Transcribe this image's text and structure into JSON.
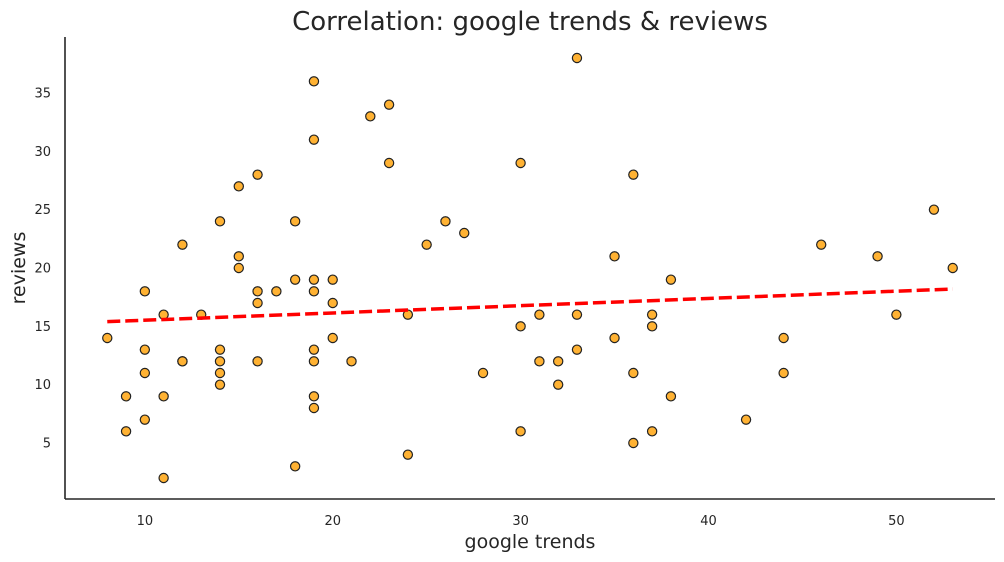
{
  "chart_data": {
    "type": "scatter",
    "title": "Correlation: google trends & reviews",
    "xlabel": "google trends",
    "ylabel": "reviews",
    "xlim": [
      5.75,
      55.25
    ],
    "ylim": [
      0.2,
      39.8
    ],
    "xticks": [
      10,
      20,
      30,
      40,
      50
    ],
    "yticks": [
      5,
      10,
      15,
      20,
      25,
      30,
      35
    ],
    "grid": false,
    "legend": "none",
    "point_color": "#FFB233",
    "point_edge_color": "#222222",
    "trend_color": "#FF0000",
    "trend_style": "dashed",
    "trendline": {
      "x": [
        8,
        53
      ],
      "y": [
        15.4,
        18.2
      ]
    },
    "points": [
      {
        "x": 8,
        "y": 14
      },
      {
        "x": 9,
        "y": 9
      },
      {
        "x": 9,
        "y": 6
      },
      {
        "x": 10,
        "y": 18
      },
      {
        "x": 10,
        "y": 13
      },
      {
        "x": 10,
        "y": 11
      },
      {
        "x": 10,
        "y": 7
      },
      {
        "x": 11,
        "y": 16
      },
      {
        "x": 11,
        "y": 9
      },
      {
        "x": 11,
        "y": 2
      },
      {
        "x": 12,
        "y": 22
      },
      {
        "x": 12,
        "y": 12
      },
      {
        "x": 12,
        "y": 12
      },
      {
        "x": 13,
        "y": 16
      },
      {
        "x": 14,
        "y": 24
      },
      {
        "x": 14,
        "y": 13
      },
      {
        "x": 14,
        "y": 12
      },
      {
        "x": 14,
        "y": 11
      },
      {
        "x": 14,
        "y": 10
      },
      {
        "x": 15,
        "y": 27
      },
      {
        "x": 15,
        "y": 21
      },
      {
        "x": 15,
        "y": 20
      },
      {
        "x": 16,
        "y": 28
      },
      {
        "x": 16,
        "y": 18
      },
      {
        "x": 16,
        "y": 17
      },
      {
        "x": 16,
        "y": 12
      },
      {
        "x": 17,
        "y": 18
      },
      {
        "x": 18,
        "y": 24
      },
      {
        "x": 18,
        "y": 19
      },
      {
        "x": 18,
        "y": 3
      },
      {
        "x": 19,
        "y": 36
      },
      {
        "x": 19,
        "y": 31
      },
      {
        "x": 19,
        "y": 19
      },
      {
        "x": 19,
        "y": 18
      },
      {
        "x": 19,
        "y": 13
      },
      {
        "x": 19,
        "y": 12
      },
      {
        "x": 19,
        "y": 9
      },
      {
        "x": 19,
        "y": 8
      },
      {
        "x": 20,
        "y": 19
      },
      {
        "x": 20,
        "y": 17
      },
      {
        "x": 20,
        "y": 14
      },
      {
        "x": 21,
        "y": 12
      },
      {
        "x": 22,
        "y": 33
      },
      {
        "x": 23,
        "y": 34
      },
      {
        "x": 23,
        "y": 29
      },
      {
        "x": 24,
        "y": 16
      },
      {
        "x": 24,
        "y": 4
      },
      {
        "x": 25,
        "y": 22
      },
      {
        "x": 26,
        "y": 24
      },
      {
        "x": 27,
        "y": 23
      },
      {
        "x": 28,
        "y": 11
      },
      {
        "x": 30,
        "y": 29
      },
      {
        "x": 30,
        "y": 15
      },
      {
        "x": 30,
        "y": 6
      },
      {
        "x": 31,
        "y": 16
      },
      {
        "x": 31,
        "y": 12
      },
      {
        "x": 32,
        "y": 12
      },
      {
        "x": 32,
        "y": 10
      },
      {
        "x": 33,
        "y": 38
      },
      {
        "x": 33,
        "y": 16
      },
      {
        "x": 33,
        "y": 13
      },
      {
        "x": 35,
        "y": 21
      },
      {
        "x": 35,
        "y": 14
      },
      {
        "x": 36,
        "y": 28
      },
      {
        "x": 36,
        "y": 11
      },
      {
        "x": 36,
        "y": 5
      },
      {
        "x": 37,
        "y": 16
      },
      {
        "x": 37,
        "y": 15
      },
      {
        "x": 37,
        "y": 6
      },
      {
        "x": 38,
        "y": 19
      },
      {
        "x": 38,
        "y": 9
      },
      {
        "x": 42,
        "y": 7
      },
      {
        "x": 44,
        "y": 14
      },
      {
        "x": 44,
        "y": 11
      },
      {
        "x": 46,
        "y": 22
      },
      {
        "x": 49,
        "y": 21
      },
      {
        "x": 50,
        "y": 16
      },
      {
        "x": 52,
        "y": 25
      },
      {
        "x": 53,
        "y": 20
      }
    ]
  }
}
